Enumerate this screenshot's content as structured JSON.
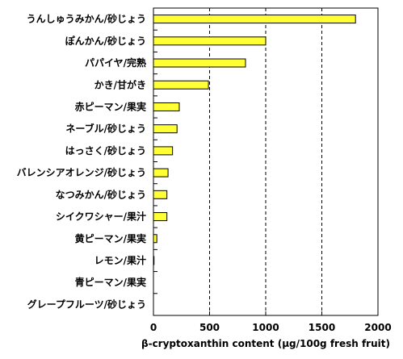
{
  "chart_data": {
    "type": "bar",
    "orientation": "horizontal",
    "categories": [
      "うんしゅうみかん/砂じょう",
      "ぽんかん/砂じょう",
      "パパイヤ/完熟",
      "かき/甘がき",
      "赤ピーマン/果実",
      "ネーブル/砂じょう",
      "はっさく/砂じょう",
      "バレンシアオレンジ/砂じょう",
      "なつみかん/砂じょう",
      "シイクワシャー/果汁",
      "黄ピーマン/果実",
      "レモン/果汁",
      "青ピーマン/果実",
      "グレープフルーツ/砂じょう"
    ],
    "values": [
      1800,
      1000,
      820,
      490,
      230,
      210,
      170,
      130,
      120,
      120,
      30,
      5,
      0,
      0
    ],
    "xlabel": "β-cryptoxanthin content (μg/100g fresh fruit)",
    "ylabel": "",
    "xlim": [
      0,
      2000
    ],
    "xticks": [
      "0",
      "500",
      "1000",
      "1500",
      "2000"
    ],
    "grid": "vertical dashed at major ticks",
    "colors": {
      "bar_fill": "#ffff33",
      "bar_stroke": "#000000",
      "axis": "#000000"
    }
  }
}
